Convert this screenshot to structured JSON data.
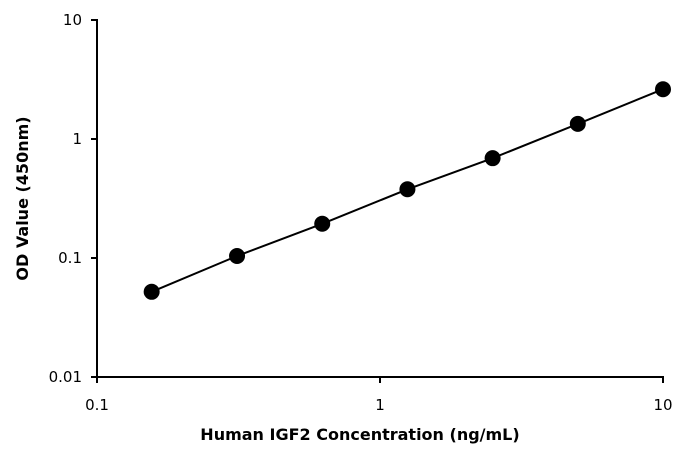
{
  "chart_data": {
    "type": "line",
    "title": "",
    "xlabel": "Human IGF2 Concentration (ng/mL)",
    "ylabel": "OD Value (450nm)",
    "xscale": "log",
    "yscale": "log",
    "xlim": [
      0.1,
      10
    ],
    "ylim": [
      0.01,
      10
    ],
    "x_ticks": [
      0.1,
      1,
      10
    ],
    "x_tick_labels": [
      "0.1",
      "1",
      "10"
    ],
    "y_ticks": [
      0.01,
      0.1,
      1,
      10
    ],
    "y_tick_labels": [
      "0.01",
      "0.1",
      "1",
      "10"
    ],
    "grid": false,
    "legend": "none",
    "series": [
      {
        "color": "#000000",
        "marker": "circle",
        "x": [
          0.156,
          0.3125,
          0.625,
          1.25,
          2.5,
          5,
          10
        ],
        "y": [
          0.052,
          0.104,
          0.194,
          0.378,
          0.69,
          1.34,
          2.62
        ]
      }
    ]
  }
}
